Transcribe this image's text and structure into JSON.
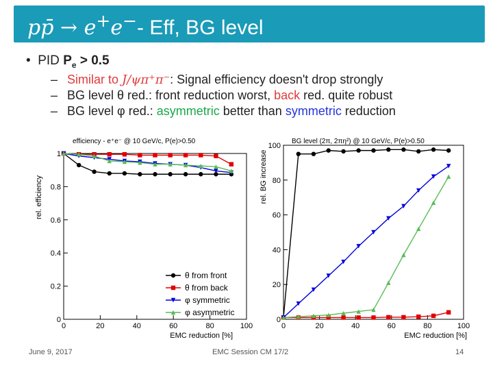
{
  "header": {
    "title_math": "pp̄ → e",
    "title_math2": "e",
    "title_plus": "+",
    "title_minus": "−",
    "title_rest": "- Eff, BG level"
  },
  "bullets": {
    "main_prefix": "PID",
    "main_bold": "P",
    "main_sub": "e",
    "main_suffix": " > 0.5",
    "items": [
      {
        "parts": [
          "Similar to ",
          "J/ψπ⁺π⁻",
          ": Signal efficiency doesn't drop strongly"
        ]
      },
      {
        "parts": [
          "BG level θ red.: front reduction worst, ",
          "back",
          " red. quite robust"
        ]
      },
      {
        "parts": [
          "BG level φ red.: ",
          "asymmetric",
          " better than ",
          "symmetric",
          " reduction"
        ]
      }
    ]
  },
  "chart_data": [
    {
      "type": "line",
      "title": "efficiency - e⁺e⁻ @ 10 GeV/c, P(e)>0.50",
      "xlabel": "EMC reduction [%]",
      "ylabel": "rel. efficiency",
      "xlim": [
        0,
        100
      ],
      "ylim": [
        0,
        1.0
      ],
      "xticks": [
        0,
        20,
        40,
        60,
        80,
        100
      ],
      "yticks": [
        0,
        0.2,
        0.4,
        0.6,
        0.8,
        1
      ],
      "x": [
        0,
        8.3,
        16.7,
        25,
        33.3,
        41.7,
        50,
        58.3,
        66.7,
        75,
        83.3,
        91.7
      ],
      "series": [
        {
          "name": "θ from front",
          "color": "#000000",
          "marker": "circle",
          "values": [
            1.0,
            0.93,
            0.89,
            0.88,
            0.88,
            0.875,
            0.875,
            0.875,
            0.875,
            0.875,
            0.875,
            0.875
          ]
        },
        {
          "name": "θ from back",
          "color": "#e00000",
          "marker": "square",
          "values": [
            1.0,
            0.995,
            0.995,
            0.995,
            0.995,
            0.99,
            0.99,
            0.99,
            0.99,
            0.99,
            0.985,
            0.935
          ]
        },
        {
          "name": "φ symmetric",
          "color": "#0000dd",
          "marker": "triangle-down",
          "values": [
            1.0,
            0.985,
            0.975,
            0.965,
            0.955,
            0.95,
            0.94,
            0.935,
            0.93,
            0.915,
            0.895,
            0.885
          ]
        },
        {
          "name": "φ asymmetric",
          "color": "#55bb55",
          "marker": "triangle-up",
          "values": [
            1.0,
            0.995,
            0.985,
            0.955,
            0.95,
            0.945,
            0.935,
            0.935,
            0.93,
            0.925,
            0.92,
            0.895
          ]
        }
      ],
      "legend": [
        "θ from front",
        "θ from back",
        "φ symmetric",
        "φ asymmetric"
      ],
      "legend_position": "bottom-right"
    },
    {
      "type": "line",
      "title": "BG level (2π, 2πη²) @ 10 GeV/c, P(e)>0.50",
      "xlabel": "EMC reduction [%]",
      "ylabel": "rel. BG increase",
      "xlim": [
        0,
        100
      ],
      "ylim": [
        0,
        100
      ],
      "xticks": [
        0,
        20,
        40,
        60,
        80,
        100
      ],
      "yticks": [
        0,
        20,
        40,
        60,
        80,
        100
      ],
      "x": [
        0,
        8.3,
        16.7,
        25,
        33.3,
        41.7,
        50,
        58.3,
        66.7,
        75,
        83.3,
        91.7
      ],
      "series": [
        {
          "name": "θ from front",
          "color": "#000000",
          "marker": "circle",
          "values": [
            1,
            95,
            95,
            97,
            96.5,
            97,
            97,
            97.5,
            97.5,
            96.5,
            97.5,
            97
          ]
        },
        {
          "name": "θ from back",
          "color": "#e00000",
          "marker": "square",
          "values": [
            1,
            1,
            1,
            1,
            1,
            1,
            1,
            1.2,
            1.2,
            1.5,
            2,
            4
          ]
        },
        {
          "name": "φ symmetric",
          "color": "#0000dd",
          "marker": "triangle-down",
          "values": [
            1,
            9,
            17,
            25,
            33,
            42,
            50,
            58,
            65,
            74,
            82,
            88
          ]
        },
        {
          "name": "φ asymmetric",
          "color": "#55bb55",
          "marker": "triangle-up",
          "values": [
            1,
            1.5,
            2,
            2.5,
            3.5,
            4.5,
            5.5,
            21,
            37,
            52,
            67,
            82
          ]
        }
      ]
    }
  ],
  "footer": {
    "date": "June 9, 2017",
    "center": "EMC Session CM 17/2",
    "page": "14"
  }
}
